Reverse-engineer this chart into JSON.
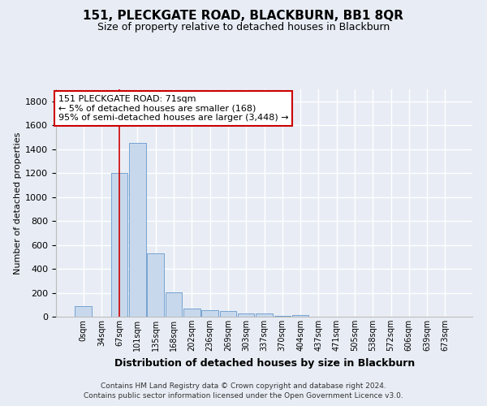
{
  "title": "151, PLECKGATE ROAD, BLACKBURN, BB1 8QR",
  "subtitle": "Size of property relative to detached houses in Blackburn",
  "xlabel": "Distribution of detached houses by size in Blackburn",
  "ylabel": "Number of detached properties",
  "footnote1": "Contains HM Land Registry data © Crown copyright and database right 2024.",
  "footnote2": "Contains public sector information licensed under the Open Government Licence v3.0.",
  "bar_labels": [
    "0sqm",
    "34sqm",
    "67sqm",
    "101sqm",
    "135sqm",
    "168sqm",
    "202sqm",
    "236sqm",
    "269sqm",
    "303sqm",
    "337sqm",
    "370sqm",
    "404sqm",
    "437sqm",
    "471sqm",
    "505sqm",
    "538sqm",
    "572sqm",
    "606sqm",
    "639sqm",
    "673sqm"
  ],
  "bar_values": [
    90,
    0,
    1200,
    1450,
    530,
    205,
    70,
    55,
    50,
    30,
    25,
    5,
    15,
    0,
    0,
    0,
    0,
    0,
    0,
    0,
    0
  ],
  "bar_color": "#c8d8ec",
  "bar_edgecolor": "#6699cc",
  "bg_color": "#e8edf5",
  "grid_color": "#ffffff",
  "red_line_x": 2,
  "annotation_title": "151 PLECKGATE ROAD: 71sqm",
  "annotation_line2": "← 5% of detached houses are smaller (168)",
  "annotation_line3": "95% of semi-detached houses are larger (3,448) →",
  "ylim": [
    0,
    1900
  ],
  "yticks": [
    0,
    200,
    400,
    600,
    800,
    1000,
    1200,
    1400,
    1600,
    1800
  ],
  "title_fontsize": 11,
  "subtitle_fontsize": 9,
  "ylabel_fontsize": 8,
  "xlabel_fontsize": 9,
  "tick_fontsize": 8,
  "xtick_fontsize": 7,
  "annot_fontsize": 8,
  "footnote_fontsize": 6.5
}
